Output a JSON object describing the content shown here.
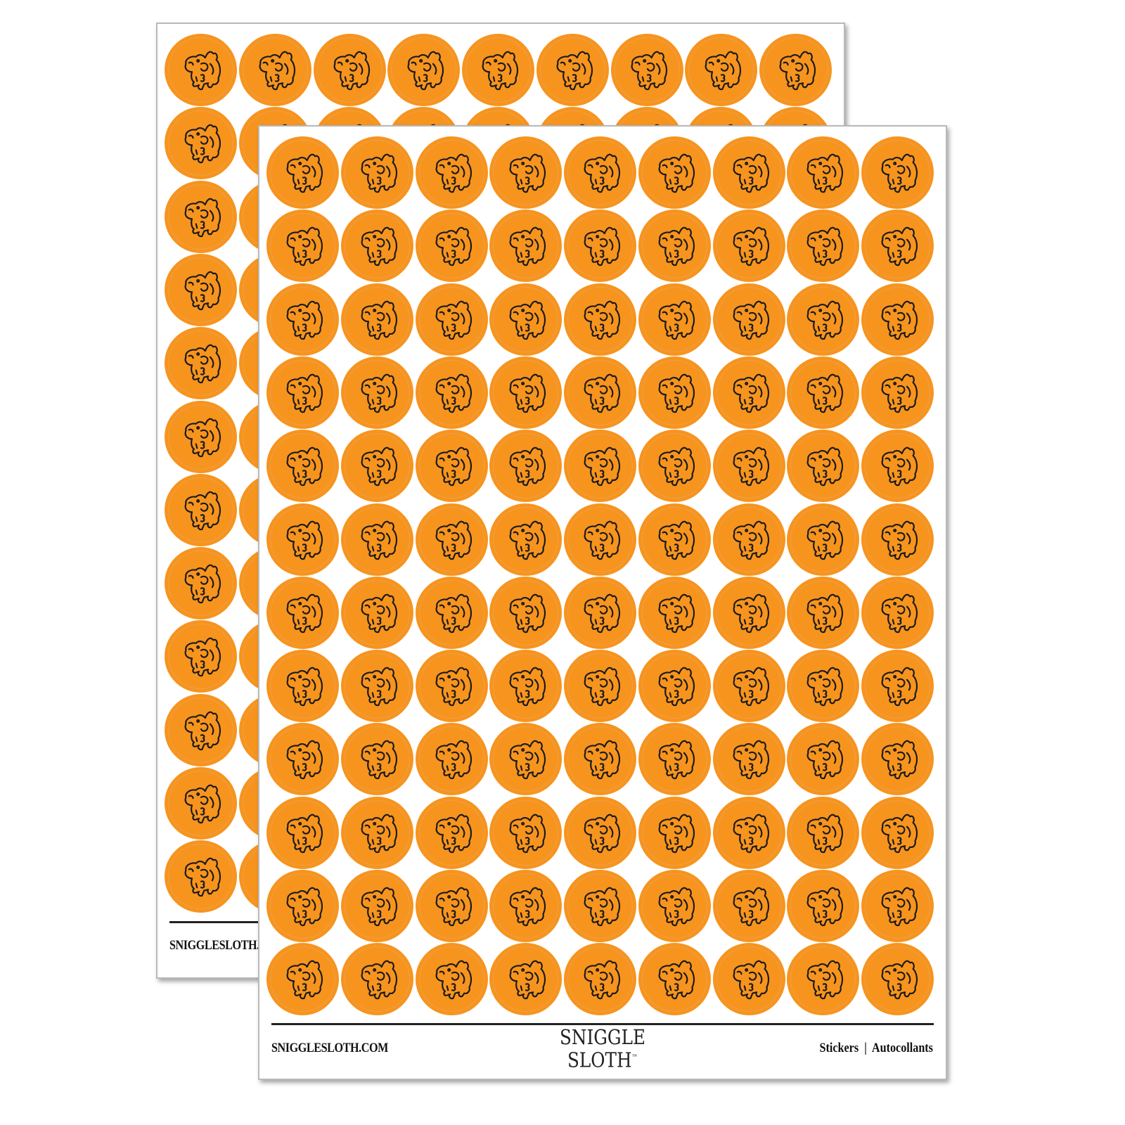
{
  "product": {
    "sticker_color": "#F7941E",
    "outline_color": "#1a1a1a",
    "icon": "cartoon-creature-icon",
    "columns": 9,
    "rows": 12
  },
  "footer": {
    "website": "SNIGGLESLOTH.COM",
    "logo_line1": "SNIGGLE",
    "logo_line2": "SLOTH",
    "logo_tm": "™",
    "tagline": "Stickers  |  Autocollants"
  }
}
